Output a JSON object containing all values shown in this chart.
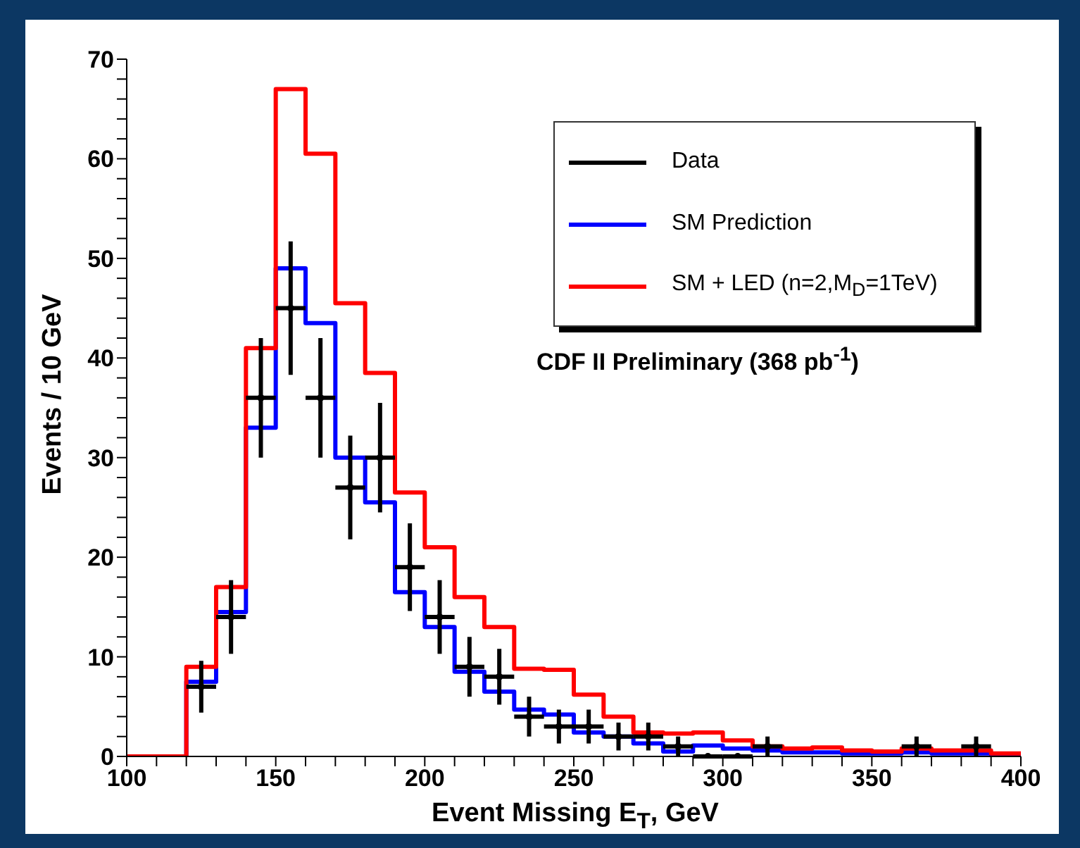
{
  "chart_data": {
    "type": "histogram",
    "xlabel": "Event Missing E$_{T}$, GeV",
    "ylabel": "Events / 10 GeV",
    "bins": [
      100,
      110,
      120,
      130,
      140,
      150,
      160,
      170,
      180,
      190,
      200,
      210,
      220,
      230,
      240,
      250,
      260,
      270,
      280,
      290,
      300,
      310,
      320,
      330,
      340,
      350,
      360,
      370,
      380,
      390,
      400
    ],
    "series": [
      {
        "name": "Data",
        "type": "scatter",
        "color": "#000000",
        "x": [
          125,
          135,
          145,
          155,
          165,
          175,
          185,
          195,
          205,
          215,
          225,
          235,
          245,
          255,
          265,
          275,
          285,
          295,
          305,
          315,
          365,
          385
        ],
        "values": [
          7,
          14,
          36,
          45,
          36,
          27,
          30,
          19,
          14,
          9,
          8,
          4,
          3,
          3,
          2,
          2,
          1,
          0,
          0,
          1,
          1,
          1
        ],
        "errors": [
          2.6,
          3.7,
          6,
          6.7,
          6,
          5.2,
          5.5,
          4.4,
          3.7,
          3,
          2.8,
          2,
          1.7,
          1.7,
          1.4,
          1.4,
          1,
          null,
          null,
          1,
          1,
          1
        ],
        "xerrors": [
          5,
          5,
          5,
          5,
          5,
          5,
          5,
          5,
          5,
          5,
          5,
          5,
          5,
          5,
          5,
          5,
          5,
          5,
          5,
          5,
          5,
          5
        ]
      },
      {
        "name": "SM Prediction",
        "color": "#0000ff",
        "values": [
          0,
          0,
          7.5,
          14.5,
          33,
          49,
          43.5,
          30,
          25.5,
          16.5,
          13,
          8.5,
          6.5,
          4.7,
          4.2,
          2.4,
          2,
          1.3,
          0.5,
          1.1,
          0.8,
          0.6,
          0.4,
          0.4,
          0.3,
          0.3,
          0.4,
          0.3,
          0.3,
          0.2
        ]
      },
      {
        "name": "SM + LED (n=2,M$_{D}$=1TeV)",
        "color": "#ff0000",
        "values": [
          0,
          0,
          9,
          17,
          41,
          67,
          60.5,
          45.5,
          38.5,
          26.5,
          21,
          16,
          13,
          8.8,
          8.7,
          6.2,
          4,
          2.4,
          2.3,
          2.4,
          1.6,
          1,
          0.8,
          0.9,
          0.6,
          0.5,
          0.8,
          0.6,
          0.6,
          0.3
        ]
      }
    ],
    "annotations": [
      "CDF II Preliminary (368 pb$^{-1}$)"
    ],
    "xlim": [
      100,
      400
    ],
    "xticks": [
      100,
      {
        "value": 110,
        "label": null
      },
      {
        "value": 120,
        "label": null
      },
      {
        "value": 130,
        "label": null
      },
      {
        "value": 140,
        "label": null
      },
      150,
      {
        "value": 160,
        "label": null
      },
      {
        "value": 170,
        "label": null
      },
      {
        "value": 180,
        "label": null
      },
      {
        "value": 190,
        "label": null
      },
      200,
      {
        "value": 210,
        "label": null
      },
      {
        "value": 220,
        "label": null
      },
      {
        "value": 230,
        "label": null
      },
      {
        "value": 240,
        "label": null
      },
      250,
      {
        "value": 260,
        "label": null
      },
      {
        "value": 270,
        "label": null
      },
      {
        "value": 280,
        "label": null
      },
      {
        "value": 290,
        "label": null
      },
      300,
      {
        "value": 310,
        "label": null
      },
      {
        "value": 320,
        "label": null
      },
      {
        "value": 330,
        "label": null
      },
      {
        "value": 340,
        "label": null
      },
      350,
      {
        "value": 360,
        "label": null
      },
      {
        "value": 370,
        "label": null
      },
      {
        "value": 380,
        "label": null
      },
      {
        "value": 390,
        "label": null
      },
      400
    ],
    "ylim": [
      0,
      70
    ],
    "yticks": [
      0,
      {
        "value": 2,
        "label": null
      },
      {
        "value": 4,
        "label": null
      },
      {
        "value": 6,
        "label": null
      },
      {
        "value": 8,
        "label": null
      },
      10,
      {
        "value": 12,
        "label": null
      },
      {
        "value": 14,
        "label": null
      },
      {
        "value": 16,
        "label": null
      },
      {
        "value": 18,
        "label": null
      },
      20,
      {
        "value": 22,
        "label": null
      },
      {
        "value": 24,
        "label": null
      },
      {
        "value": 26,
        "label": null
      },
      {
        "value": 28,
        "label": null
      },
      30,
      {
        "value": 32,
        "label": null
      },
      {
        "value": 34,
        "label": null
      },
      {
        "value": 36,
        "label": null
      },
      {
        "value": 38,
        "label": null
      },
      40,
      {
        "value": 42,
        "label": null
      },
      {
        "value": 44,
        "label": null
      },
      {
        "value": 46,
        "label": null
      },
      {
        "value": 48,
        "label": null
      },
      50,
      {
        "value": 52,
        "label": null
      },
      {
        "value": 54,
        "label": null
      },
      {
        "value": 56,
        "label": null
      },
      {
        "value": 58,
        "label": null
      },
      60,
      {
        "value": 62,
        "label": null
      },
      {
        "value": 64,
        "label": null
      },
      {
        "value": 66,
        "label": null
      },
      {
        "value": 68,
        "label": null
      },
      70
    ],
    "legend": "top right",
    "marker": "circle",
    "line_style": "solid",
    "grid": false
  }
}
